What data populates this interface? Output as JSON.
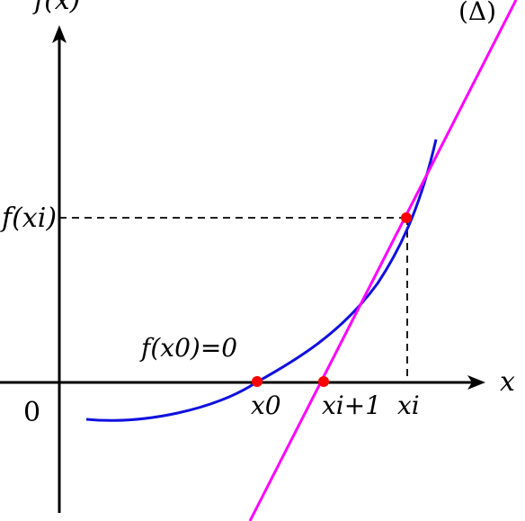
{
  "labels": {
    "y_axis": "f(x)",
    "x_axis": "x",
    "origin": "0",
    "tangent": "(Δ)",
    "fxi": "f(xi)",
    "fx0_eq": "f(x0)=0",
    "x0": "x0",
    "xi1": "xi+1",
    "xi": "xi"
  },
  "colors": {
    "axes": "#000000",
    "curve": "#1010e0",
    "tangent": "#ff00ff",
    "points": "#ff0000",
    "guides": "#000000"
  }
}
